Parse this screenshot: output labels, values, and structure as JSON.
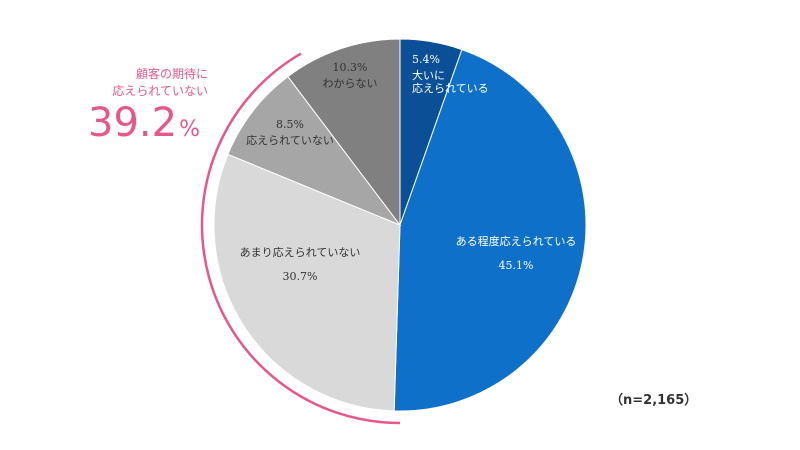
{
  "chart_data": {
    "type": "pie",
    "slices": [
      {
        "label": "大いに\n応えられている",
        "value": 5.4,
        "display": "5.4%",
        "color": "#0b4f96",
        "text_color": "#ffffff"
      },
      {
        "label": "ある程度応えられている",
        "value": 45.1,
        "display": "45.1%",
        "color": "#0f70c9",
        "text_color": "#ffffff"
      },
      {
        "label": "あまり応えられていない",
        "value": 30.7,
        "display": "30.7%",
        "color": "#d9d9d9",
        "text_color": "#333333"
      },
      {
        "label": "応えられていない",
        "value": 8.5,
        "display": "8.5%",
        "color": "#a6a6a6",
        "text_color": "#333333"
      },
      {
        "label": "わからない",
        "value": 10.3,
        "display": "10.3%",
        "color": "#808080",
        "text_color": "#333333"
      }
    ],
    "start_angle_deg": 0,
    "direction": "clockwise"
  },
  "callout": {
    "title_line1": "顧客の期待に",
    "title_line2": "応えられていない",
    "value": "39.2",
    "unit": "%",
    "color": "#e8578a"
  },
  "sample_size": "（n=2,165）"
}
